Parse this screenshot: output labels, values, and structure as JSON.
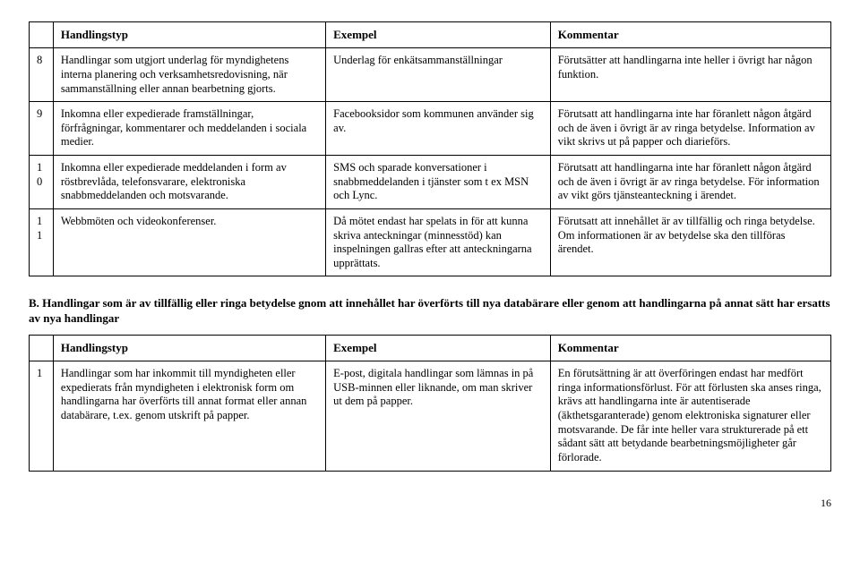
{
  "tableA": {
    "headers": {
      "num": "",
      "type": "Handlingstyp",
      "ex": "Exempel",
      "cm": "Kommentar"
    },
    "rows": [
      {
        "num": "8",
        "type": "Handlingar som utgjort underlag för myndighetens interna planering och verksamhetsredovisning, när sammanställning eller annan bearbetning gjorts.",
        "ex": "Underlag för enkätsammanställningar",
        "cm": "Förutsätter att handlingarna inte heller i övrigt har någon funktion."
      },
      {
        "num": "9",
        "type": "Inkomna eller expedierade framställningar, förfrågningar, kommentarer och meddelanden i sociala medier.",
        "ex": "Facebooksidor som kommunen använder sig av.",
        "cm": "Förutsatt att handlingarna inte har föranlett någon åtgärd och de även i övrigt är av ringa betydelse. Information av vikt skrivs ut på papper och diarieförs."
      },
      {
        "num": "10",
        "type": "Inkomna eller expedierade meddelanden i form av röstbrevlåda, telefonsvarare, elektroniska snabbmeddelanden och motsvarande.",
        "ex": "SMS och sparade konversationer i snabbmeddelanden i tjänster som t ex MSN och Lync.",
        "cm": "Förutsatt att handlingarna inte har föranlett någon åtgärd och de även i övrigt är av ringa betydelse. För information av vikt görs tjänsteanteckning i ärendet."
      },
      {
        "num": "11",
        "type": "Webbmöten och videokonferenser.",
        "ex": "Då mötet endast har spelats in för att kunna skriva anteckningar (minnesstöd) kan inspelningen gallras efter att anteckningarna upprättats.",
        "cm": "Förutsatt att innehållet är av tillfällig och ringa betydelse. Om informationen är av betydelse ska den tillföras ärendet."
      }
    ]
  },
  "sectionB": {
    "heading": "B. Handlingar som är av tillfällig eller ringa betydelse gnom att innehållet har överförts till nya databärare eller genom att handlingarna på annat sätt har ersatts av nya handlingar"
  },
  "tableB": {
    "headers": {
      "num": "",
      "type": "Handlingstyp",
      "ex": "Exempel",
      "cm": "Kommentar"
    },
    "rows": [
      {
        "num": "1",
        "type": "Handlingar som har inkommit till myndigheten eller expedierats från myndigheten i elektronisk form om handlingarna har överförts till annat format eller annan databärare, t.ex. genom utskrift på papper.",
        "ex": "E-post, digitala handlingar som lämnas in på USB-minnen eller liknande, om man skriver ut dem på papper.",
        "cm": "En förutsättning är att överföringen endast har medfört ringa informationsförlust. För att förlusten ska anses ringa, krävs att handlingarna inte är autentiserade (äkthetsgaranterade) genom elektroniska signaturer eller motsvarande. De får inte heller vara strukturerade på ett sådant sätt att betydande bearbetningsmöjligheter går förlorade."
      }
    ]
  },
  "page": "16"
}
